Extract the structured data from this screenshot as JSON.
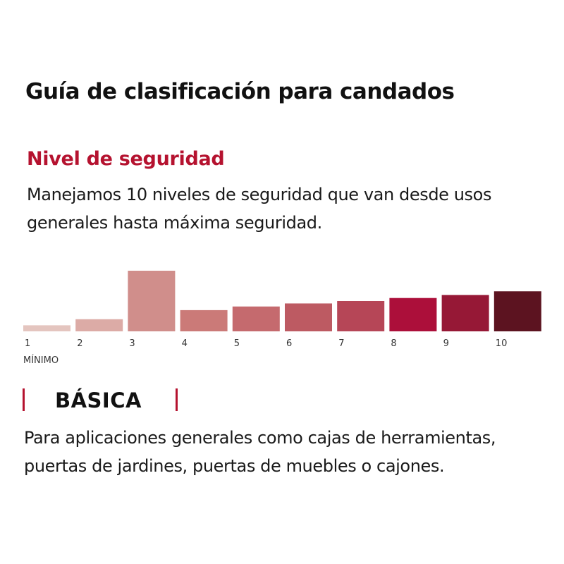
{
  "header": {
    "title": "Guía de clasificación para candados"
  },
  "section": {
    "subtitle": "Nivel de seguridad",
    "intro": "Manejamos 10 niveles de seguridad que van desde usos generales hasta máxima seguridad."
  },
  "colors": {
    "accent": "#b5122f",
    "text": "#1a1a1a"
  },
  "chart_data": {
    "type": "bar",
    "categories": [
      "1",
      "2",
      "3",
      "4",
      "5",
      "6",
      "7",
      "8",
      "9",
      "10"
    ],
    "values": [
      1,
      2,
      10,
      3.5,
      4.1,
      4.6,
      5.0,
      5.5,
      6.0,
      6.6
    ],
    "highlighted_category": "3",
    "annotation": "MÍNIMO",
    "ylim": [
      0,
      10
    ],
    "grid": false,
    "colors": [
      "#e4c5bf",
      "#dcaba6",
      "#d08e8b",
      "#cb7a78",
      "#c56a6e",
      "#bd5a62",
      "#b64657",
      "#ac0f3a",
      "#961836",
      "#5c1320"
    ]
  },
  "selected_level": {
    "name": "BÁSICA",
    "description": "Para aplicaciones generales como cajas de herramientas, puertas de jardines, puertas de muebles o cajones."
  }
}
